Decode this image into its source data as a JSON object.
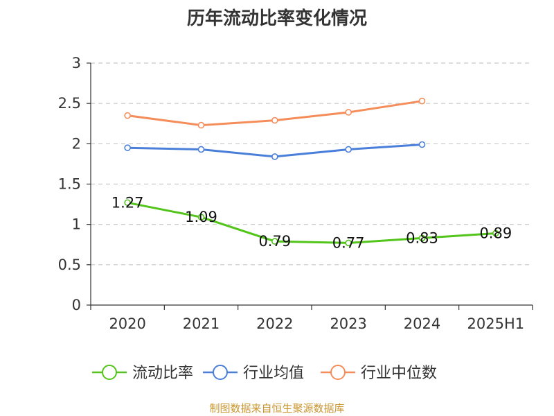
{
  "chart_data": {
    "type": "line",
    "title": "历年流动比率变化情况",
    "categories": [
      "2020",
      "2021",
      "2022",
      "2023",
      "2024",
      "2025H1"
    ],
    "y_ticks": [
      "0",
      "0.5",
      "1",
      "1.5",
      "2",
      "2.5",
      "3"
    ],
    "ylim": [
      0,
      3
    ],
    "grid": true,
    "legend_position": "bottom",
    "series": [
      {
        "name": "流动比率",
        "color": "#52c41a",
        "values": [
          1.27,
          1.09,
          0.79,
          0.77,
          0.83,
          0.89
        ],
        "labels": [
          "1.27",
          "1.09",
          "0.79",
          "0.77",
          "0.83",
          "0.89"
        ]
      },
      {
        "name": "行业均值",
        "color": "#4a7fd9",
        "values": [
          1.95,
          1.93,
          1.84,
          1.93,
          1.99,
          null
        ]
      },
      {
        "name": "行业中位数",
        "color": "#f58d5b",
        "values": [
          2.35,
          2.23,
          2.29,
          2.39,
          2.53,
          null
        ]
      }
    ]
  },
  "footer": {
    "source": "制图数据来自恒生聚源数据库"
  }
}
